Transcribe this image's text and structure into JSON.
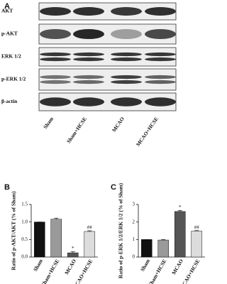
{
  "blot": {
    "panel_label": "A",
    "rows": [
      "AKT",
      "p-AKT",
      "ERK 1/2",
      "p-ERK 1/2",
      "β-actin"
    ],
    "lanes": [
      "Sham",
      "Sham+HCSE",
      "MCAO",
      "MCAO+HCSE"
    ]
  },
  "chart_data": [
    {
      "type": "bar",
      "panel_label": "B",
      "y_label": "Ratio of p-AKT/AKT (% of Sham)",
      "categories": [
        "Sham",
        "Sham+HCSE",
        "MCAO",
        "MCAO+HCSE"
      ],
      "values": [
        1.0,
        1.08,
        0.12,
        0.73
      ],
      "errors": [
        0,
        0.03,
        0.03,
        0.02
      ],
      "annotations": [
        null,
        null,
        "*",
        "##"
      ],
      "colors": [
        "#111111",
        "#9a9a9a",
        "#555555",
        "#dcdcdc"
      ],
      "ylim": [
        0,
        1.5
      ],
      "yticks": [
        {
          "value": 0,
          "label": "0.0"
        },
        0.5,
        {
          "value": 1,
          "label": "1.0"
        },
        1.5
      ]
    },
    {
      "type": "bar",
      "panel_label": "C",
      "y_label": "Ratio of p-ERK 1/2/ERK 1/2 (% of Sham)",
      "categories": [
        "Sham",
        "Sham+HCSE",
        "MCAO",
        "MCAO+HCSE"
      ],
      "values": [
        1.0,
        0.97,
        2.6,
        1.48
      ],
      "errors": [
        0,
        0.03,
        0.06,
        0.03
      ],
      "annotations": [
        null,
        null,
        "*",
        "##"
      ],
      "colors": [
        "#111111",
        "#9a9a9a",
        "#555555",
        "#dcdcdc"
      ],
      "ylim": [
        0,
        3
      ],
      "yticks": [
        0,
        1,
        2,
        3
      ]
    }
  ]
}
